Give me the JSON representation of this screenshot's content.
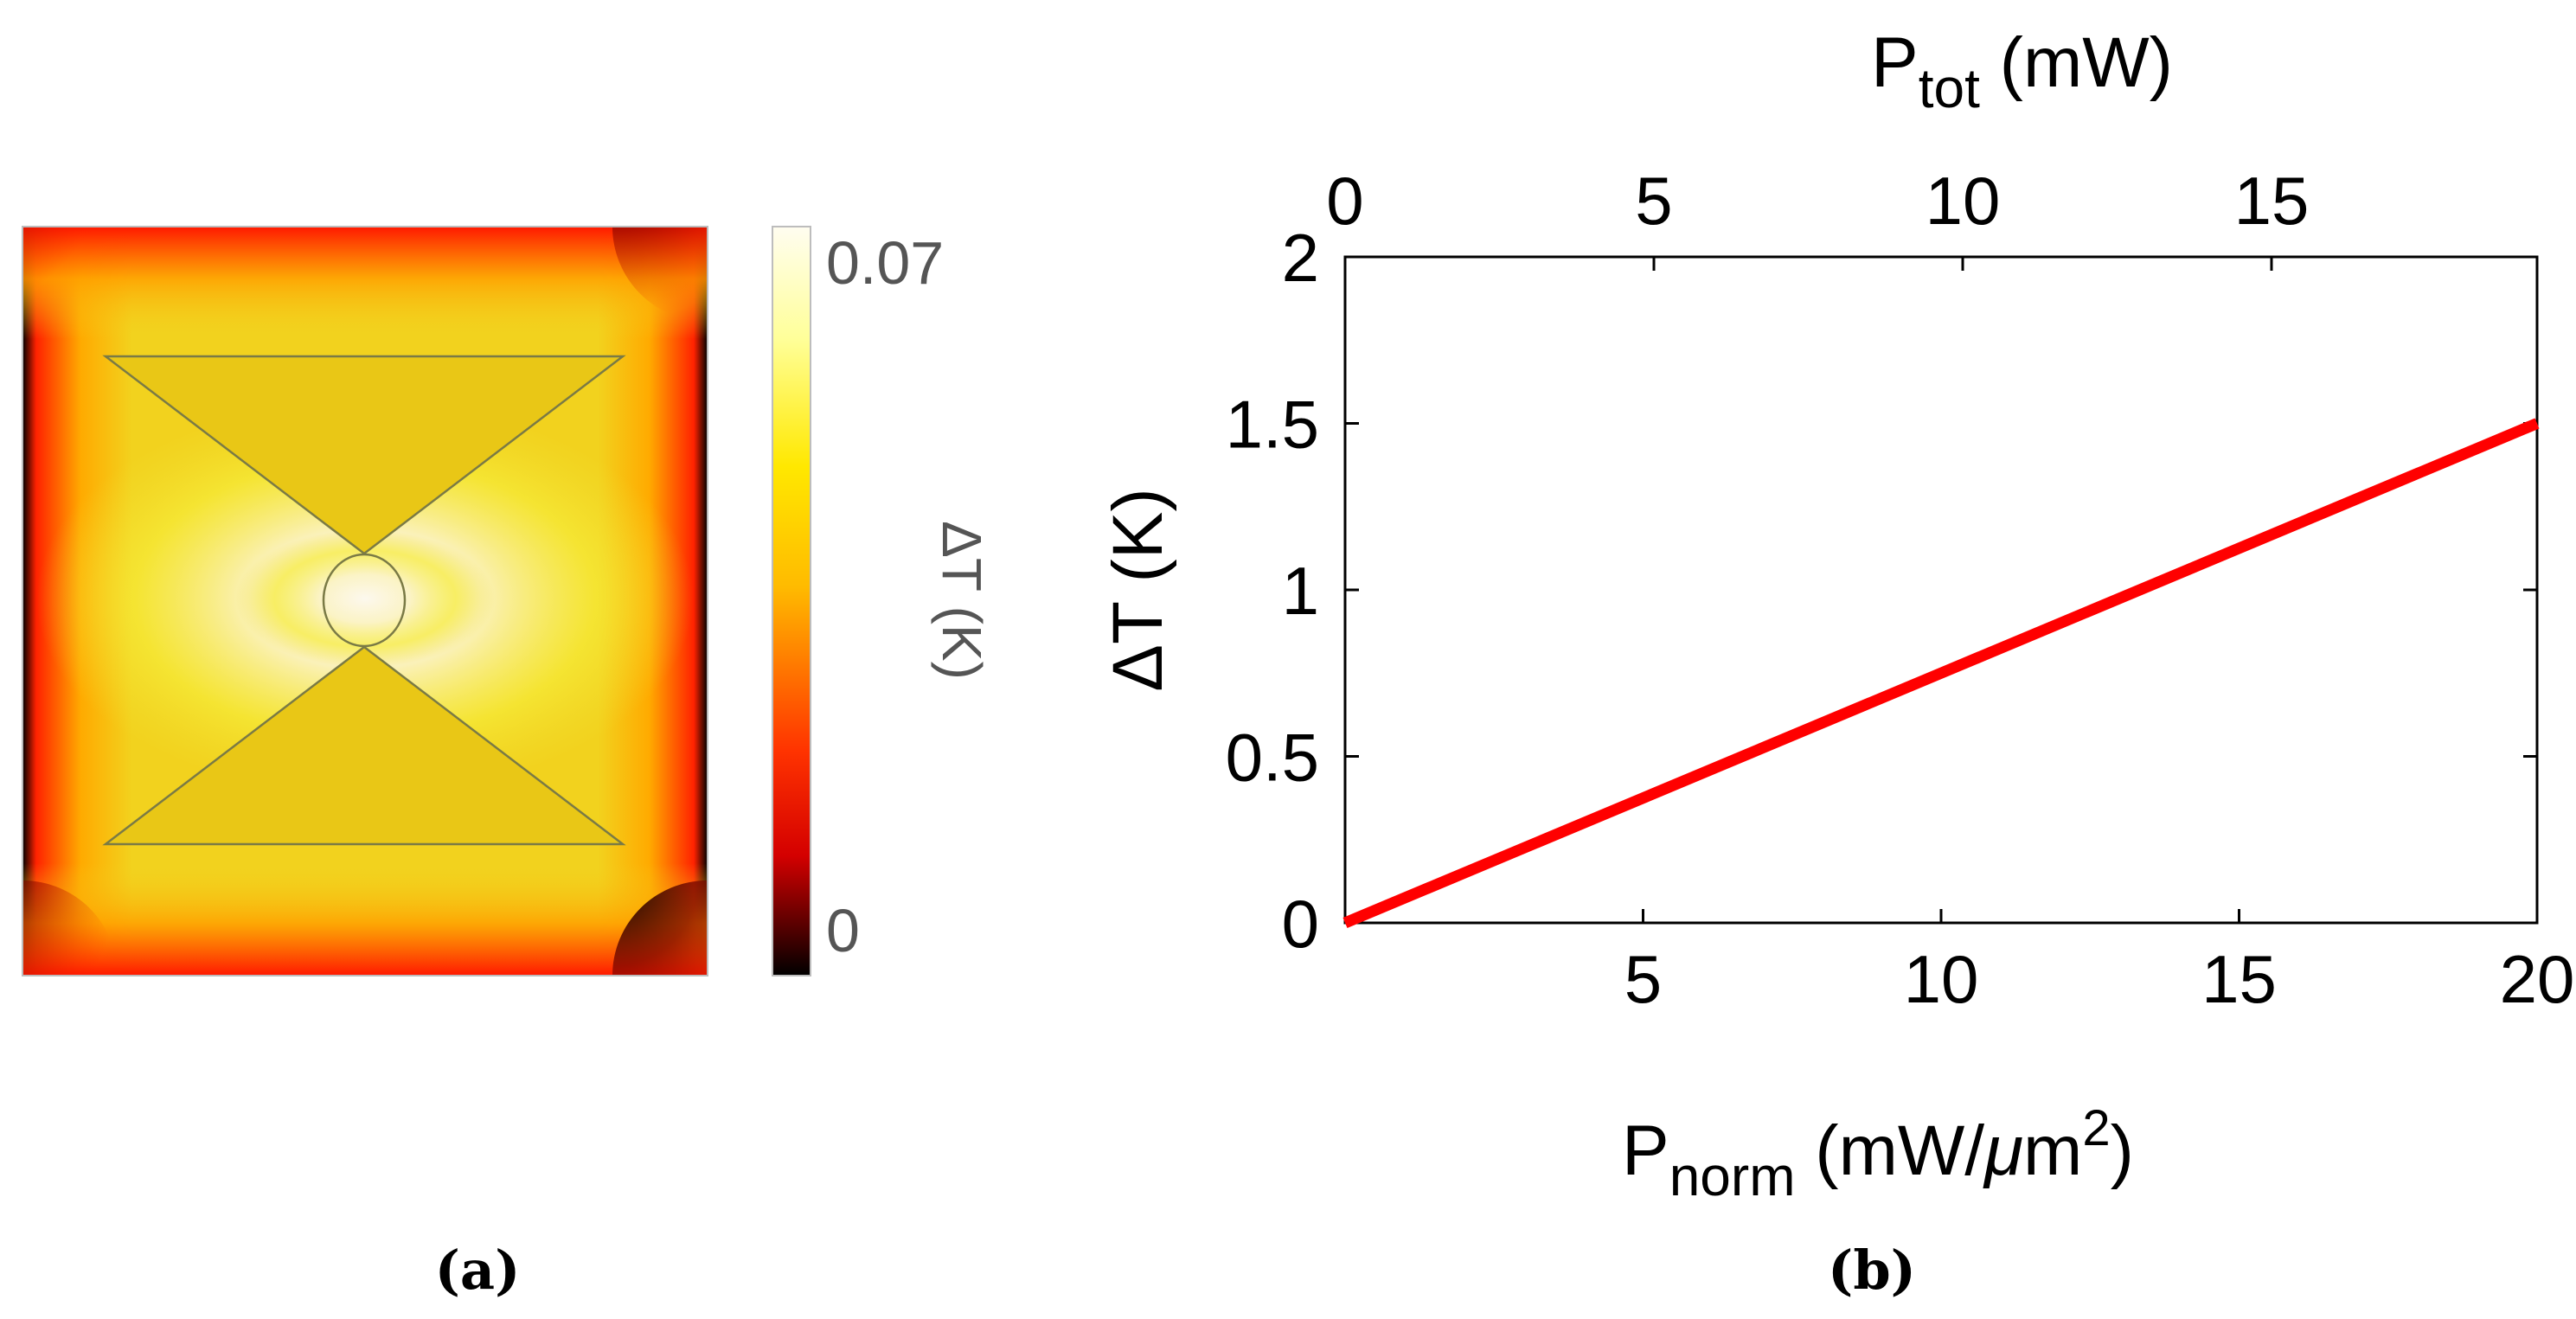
{
  "panel_a": {
    "label": "(a)",
    "colorbar": {
      "max_label": "0.07",
      "min_label": "0",
      "title": "ΔT (K)",
      "colors": [
        "#000000",
        "#d40000",
        "#ff3300",
        "#ffbb00",
        "#ffe800",
        "#ffff99",
        "#fffdf0"
      ]
    },
    "map_colors": {
      "hot": "#fbf6e8",
      "warm": "#f7ec22",
      "mid": "#f0c620",
      "edge": "#ff2a00",
      "corner": "#000000",
      "structure_fill": "#e9c716",
      "structure_stroke": "#7a7a45"
    }
  },
  "panel_b": {
    "label": "(b)",
    "chart_data": {
      "type": "line",
      "title": "",
      "xlabel_main": "P",
      "xlabel_sub": "norm",
      "xlabel_unit_pre": " (mW/",
      "xlabel_mu": "μ",
      "xlabel_unit_m": "m",
      "xlabel_sup": "2",
      "xlabel_close": ")",
      "ylabel": "ΔT (K)",
      "top_xlabel_main": "P",
      "top_xlabel_sub": "tot",
      "top_xlabel_unit": " (mW)",
      "xlim": [
        0,
        20
      ],
      "ylim": [
        0,
        2
      ],
      "top_xlim": [
        0,
        19.3
      ],
      "x_ticks": [
        5,
        10,
        15,
        20
      ],
      "y_ticks": [
        0,
        0.5,
        1,
        1.5,
        2
      ],
      "top_x_ticks": [
        0,
        5,
        10,
        15
      ],
      "x_tick_labels": [
        "5",
        "10",
        "15",
        "20"
      ],
      "y_tick_labels": [
        "0",
        "0.5",
        "1",
        "1.5",
        "2"
      ],
      "top_x_tick_labels": [
        "0",
        "5",
        "10",
        "15"
      ],
      "series": [
        {
          "name": "ΔT",
          "color": "#ff0000",
          "x": [
            0,
            20
          ],
          "y": [
            0,
            1.5
          ]
        }
      ]
    }
  }
}
